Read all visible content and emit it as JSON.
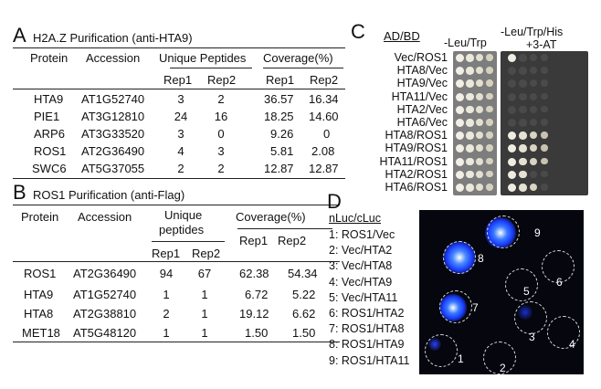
{
  "panelA": {
    "letter": "A",
    "title": "H2A.Z Purification (anti-HTA9)",
    "headers": {
      "protein": "Protein",
      "accession": "Accession",
      "unique": "Unique Peptides",
      "coverage": "Coverage(%)"
    },
    "subheaders": [
      "Rep1",
      "Rep2",
      "Rep1",
      "Rep2"
    ],
    "rows": [
      {
        "protein": "HTA9",
        "accession": "AT1G52740",
        "u1": "3",
        "u2": "2",
        "c1": "36.57",
        "c2": "16.34"
      },
      {
        "protein": "PIE1",
        "accession": "AT3G12810",
        "u1": "24",
        "u2": "16",
        "c1": "18.25",
        "c2": "14.60"
      },
      {
        "protein": "ARP6",
        "accession": "AT3G33520",
        "u1": "3",
        "u2": "0",
        "c1": "9.26",
        "c2": "0"
      },
      {
        "protein": "ROS1",
        "accession": "AT2G36490",
        "u1": "4",
        "u2": "3",
        "c1": "5.81",
        "c2": "2.08"
      },
      {
        "protein": "SWC6",
        "accession": "AT5G37055",
        "u1": "2",
        "u2": "2",
        "c1": "12.87",
        "c2": "12.87"
      }
    ]
  },
  "panelB": {
    "letter": "B",
    "title": "ROS1 Purification (anti-Flag)",
    "headers": {
      "protein": "Protein",
      "accession": "Accession",
      "unique1": "Unique",
      "unique2": "peptides",
      "coverage": "Coverage(%)"
    },
    "subheaders": [
      "Rep1",
      "Rep2",
      "Rep1",
      "Rep2"
    ],
    "rows": [
      {
        "protein": "ROS1",
        "accession": "AT2G36490",
        "u1": "94",
        "u2": "67",
        "c1": "62.38",
        "c2": "54.34"
      },
      {
        "protein": "HTA9",
        "accession": "AT1G52740",
        "u1": "1",
        "u2": "1",
        "c1": "6.72",
        "c2": "5.22"
      },
      {
        "protein": "HTA8",
        "accession": "AT2G38810",
        "u1": "2",
        "u2": "1",
        "c1": "19.12",
        "c2": "6.62"
      },
      {
        "protein": "MET18",
        "accession": "AT5G48120",
        "u1": "1",
        "u2": "1",
        "c1": "1.50",
        "c2": "1.50"
      }
    ]
  },
  "panelC": {
    "letter": "C",
    "header": "AD/BD",
    "col1": "-Leu/Trp",
    "col2a": "-Leu/Trp/His",
    "col2b": "+3-AT",
    "rows": [
      "Vec/ROS1",
      "HTA8/Vec",
      "HTA9/Vec",
      "HTA11/Vec",
      "HTA2/Vec",
      "HTA6/Vec",
      "HTA8/ROS1",
      "HTA9/ROS1",
      "HTA11/ROS1",
      "HTA2/ROS1",
      "HTA6/ROS1"
    ],
    "growth_sel": [
      1,
      0,
      0,
      0,
      0,
      0,
      4,
      4,
      4,
      2,
      3
    ]
  },
  "panelD": {
    "letter": "D",
    "header": "nLuc/cLuc",
    "legend": [
      "1: ROS1/Vec",
      "2: Vec/HTA2",
      "3: Vec/HTA8",
      "4: Vec/HTA9",
      "5: Vec/HTA11",
      "6: ROS1/HTA2",
      "7: ROS1/HTA8",
      "8: ROS1/HTA9",
      "9: ROS1/HTA11"
    ],
    "spots": [
      "1",
      "2",
      "3",
      "4",
      "5",
      "6",
      "7",
      "8",
      "9"
    ]
  }
}
